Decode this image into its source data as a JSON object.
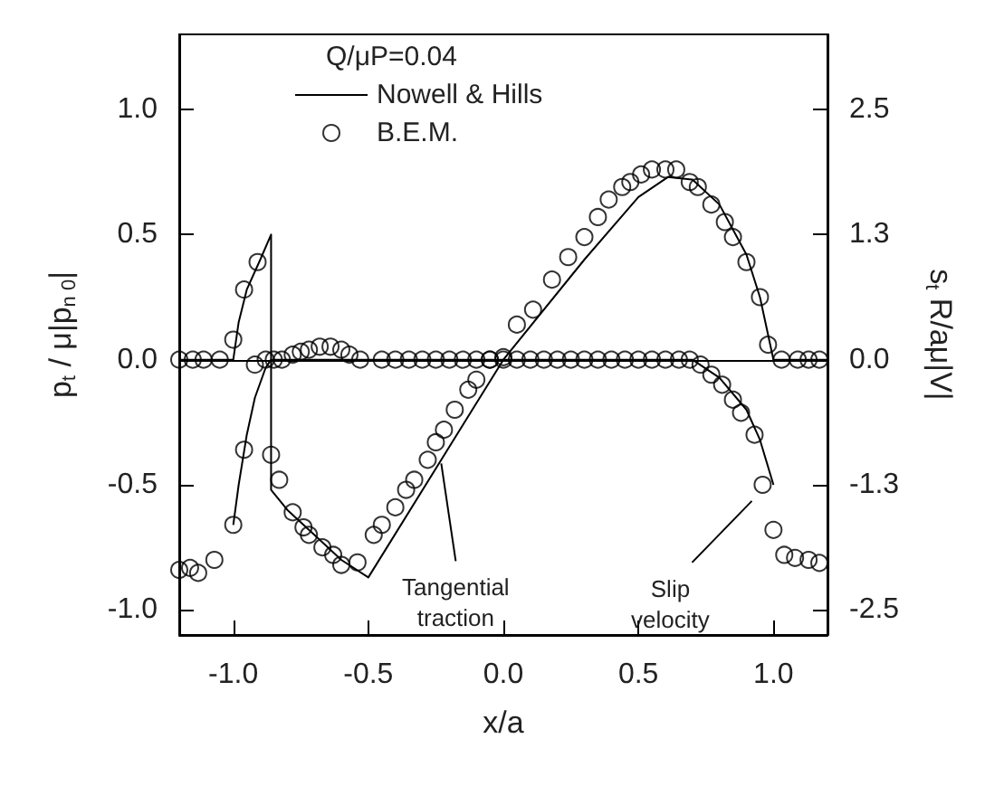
{
  "chart_data": {
    "type": "line",
    "xlabel": "x/a",
    "ylabel": "p$_{t}$ / μ|p$_{n 0}$|",
    "y2label": "s$_{t}$ R/aμ|V|",
    "legend_title": "Q/μP=0.04",
    "legend": "top",
    "grid": false,
    "xlim": [
      -1.2,
      1.2
    ],
    "xticks": [
      {
        "value": -1,
        "label": "-1.0"
      },
      {
        "value": -0.5,
        "label": "-0.5"
      },
      {
        "value": 0,
        "label": "0.0"
      },
      {
        "value": 0.5,
        "label": "0.5"
      },
      {
        "value": 1,
        "label": "1.0"
      }
    ],
    "ylim": [
      -1.1,
      1.3
    ],
    "yticks": [
      {
        "value": -1,
        "label": "-1.0"
      },
      {
        "value": -0.5,
        "label": "-0.5"
      },
      {
        "value": 0,
        "label": "0.0"
      },
      {
        "value": 0.5,
        "label": "0.5"
      },
      {
        "value": 1,
        "label": "1.0"
      }
    ],
    "y2lim": [
      -2.75,
      3.25
    ],
    "y2ticks": [
      {
        "value": -2.5,
        "label": "-2.5"
      },
      {
        "value": -1.25,
        "label": "-1.3"
      },
      {
        "value": 0,
        "label": "0.0"
      },
      {
        "value": 1.25,
        "label": "1.3"
      },
      {
        "value": 2.5,
        "label": "2.5"
      }
    ],
    "ref_lines": [
      {
        "axis": "y",
        "value": 0,
        "label": null,
        "color": "#000000"
      }
    ],
    "annotations": [
      {
        "text": "Tangential traction",
        "x": -0.23,
        "y": -0.4
      },
      {
        "text": "Slip velocity",
        "x": 0.92,
        "y": -0.55
      }
    ],
    "series": [
      {
        "name": "Nowell & Hills",
        "marker": "none",
        "color": "#000000",
        "x": [
          -1.2,
          -1.0,
          -0.98,
          -0.95,
          -0.9,
          -0.86,
          -0.86,
          -0.8,
          -0.7,
          -0.6,
          -0.5,
          0,
          0.3,
          0.5,
          0.61,
          0.7,
          0.8,
          0.9,
          0.95,
          0.98,
          1.0,
          1.2
        ],
        "values": [
          0,
          0,
          0.15,
          0.28,
          0.4,
          0.5,
          -0.52,
          -0.6,
          -0.7,
          -0.8,
          -0.87,
          0,
          0.4,
          0.65,
          0.73,
          0.72,
          0.62,
          0.42,
          0.25,
          0.1,
          0,
          0
        ]
      },
      {
        "name": "B.E.M.",
        "type": "scatter",
        "marker": "circle",
        "color": "#000000",
        "x": [
          -1.2,
          -1.15,
          -1.11,
          -1.05,
          -1.0,
          -0.96,
          -0.91,
          -0.86,
          -0.83,
          -0.78,
          -0.74,
          -0.72,
          -0.67,
          -0.63,
          -0.6,
          -0.54,
          -0.48,
          -0.45,
          -0.4,
          -0.36,
          -0.33,
          -0.28,
          -0.25,
          -0.22,
          -0.18,
          -0.13,
          -0.1,
          -0.05,
          0,
          0.05,
          0.11,
          0.18,
          0.24,
          0.3,
          0.35,
          0.39,
          0.44,
          0.47,
          0.51,
          0.55,
          0.6,
          0.64,
          0.69,
          0.72,
          0.77,
          0.82,
          0.85,
          0.9,
          0.95,
          0.98,
          1.03,
          1.09,
          1.13,
          1.17
        ],
        "values": [
          0,
          0,
          0,
          0,
          0.08,
          0.28,
          0.39,
          -0.38,
          -0.48,
          -0.61,
          -0.67,
          -0.7,
          -0.75,
          -0.78,
          -0.82,
          -0.81,
          -0.7,
          -0.66,
          -0.59,
          -0.52,
          -0.48,
          -0.4,
          -0.33,
          -0.28,
          -0.2,
          -0.12,
          -0.08,
          0,
          0.01,
          0.14,
          0.2,
          0.32,
          0.41,
          0.49,
          0.57,
          0.64,
          0.69,
          0.71,
          0.74,
          0.76,
          0.76,
          0.76,
          0.71,
          0.69,
          0.62,
          0.55,
          0.49,
          0.39,
          0.25,
          0.06,
          0,
          0,
          0,
          0
        ]
      },
      {
        "type": "line",
        "axis": "y2",
        "marker": "none",
        "color": "#000000",
        "x": [
          -1.0,
          -0.98,
          -0.95,
          -0.92,
          -0.88,
          -0.86,
          0.7,
          0.8,
          0.9,
          0.95,
          1.0
        ],
        "values": [
          -1.65,
          -1.25,
          -0.75,
          -0.38,
          -0.08,
          0,
          0,
          -0.18,
          -0.5,
          -0.8,
          -1.25
        ]
      },
      {
        "type": "scatter",
        "axis": "y2",
        "marker": "circle",
        "color": "#000000",
        "x": [
          -1.2,
          -1.16,
          -1.13,
          -1.07,
          -1.0,
          -0.96,
          -0.92,
          -0.88,
          -0.85,
          -0.82,
          -0.78,
          -0.75,
          -0.72,
          -0.68,
          -0.64,
          -0.6,
          -0.57,
          -0.53,
          -0.45,
          -0.4,
          -0.35,
          -0.3,
          -0.25,
          -0.2,
          -0.15,
          -0.1,
          -0.05,
          0,
          0.05,
          0.1,
          0.15,
          0.2,
          0.25,
          0.3,
          0.35,
          0.4,
          0.45,
          0.5,
          0.55,
          0.6,
          0.65,
          0.69,
          0.73,
          0.77,
          0.81,
          0.85,
          0.88,
          0.93,
          0.96,
          1.0,
          1.04,
          1.08,
          1.13,
          1.17
        ],
        "values": [
          -2.1,
          -2.08,
          -2.13,
          -2.0,
          -1.65,
          -0.9,
          -0.05,
          0,
          0,
          0,
          0.05,
          0.08,
          0.1,
          0.13,
          0.13,
          0.1,
          0.05,
          0,
          0,
          0,
          0,
          0,
          0,
          0,
          0,
          0,
          0,
          0,
          0,
          0,
          0,
          0,
          0,
          0,
          0,
          0,
          0,
          0,
          0,
          0,
          0,
          0,
          -0.05,
          -0.15,
          -0.25,
          -0.4,
          -0.53,
          -0.75,
          -1.25,
          -1.7,
          -1.95,
          -1.98,
          -2.0,
          -2.03
        ]
      }
    ]
  }
}
